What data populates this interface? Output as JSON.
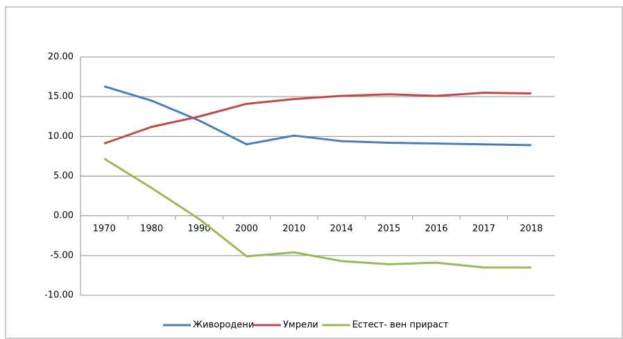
{
  "chart_data": {
    "type": "line",
    "categories": [
      "1970",
      "1980",
      "1990",
      "2000",
      "2010",
      "2014",
      "2015",
      "2016",
      "2017",
      "2018"
    ],
    "series": [
      {
        "name": "Живородени",
        "color": "#4a7ebb",
        "values": [
          16.3,
          14.5,
          12.0,
          9.0,
          10.1,
          9.4,
          9.2,
          9.1,
          9.0,
          8.9
        ]
      },
      {
        "name": "Умрели",
        "color": "#be4b48",
        "values": [
          9.1,
          11.2,
          12.5,
          14.1,
          14.7,
          15.1,
          15.3,
          15.1,
          15.5,
          15.4
        ]
      },
      {
        "name": "Естест- вен прираст",
        "color": "#98b954",
        "values": [
          7.2,
          3.5,
          -0.4,
          -5.1,
          -4.6,
          -5.7,
          -6.1,
          -5.9,
          -6.5,
          -6.5
        ]
      }
    ],
    "ylim": [
      -10,
      20
    ],
    "yticks": [
      {
        "value": -10,
        "label": "-10.00"
      },
      {
        "value": -5,
        "label": "-5.00"
      },
      {
        "value": 0,
        "label": "0.00"
      },
      {
        "value": 5,
        "label": "5.00"
      },
      {
        "value": 10,
        "label": "10.00"
      },
      {
        "value": 15,
        "label": "15.00"
      },
      {
        "value": 20,
        "label": "20.00"
      }
    ],
    "grid": true,
    "legend": "bottom"
  }
}
